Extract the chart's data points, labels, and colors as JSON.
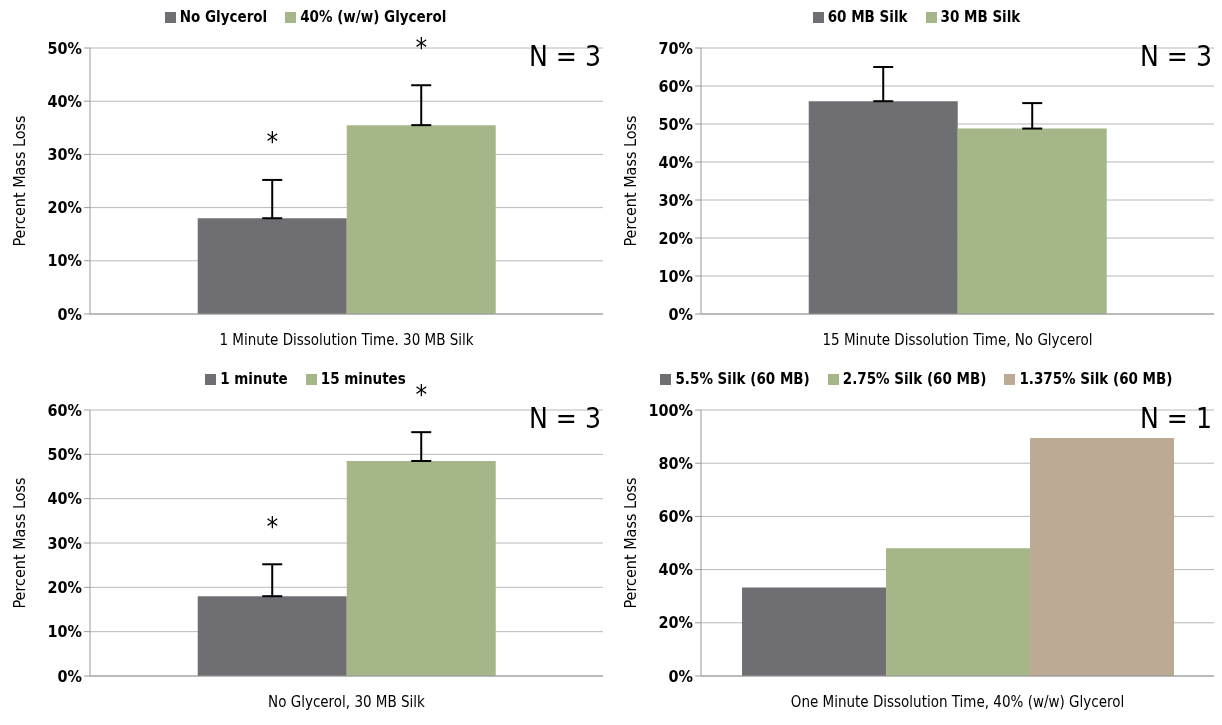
{
  "chart_data": [
    {
      "type": "bar",
      "categories": [
        "1 Minute Dissolution Time. 30 MB Silk"
      ],
      "ylabel": "Percent Mass Loss",
      "ylim": [
        0,
        50
      ],
      "yticks": [
        {
          "value": 0,
          "label": "0%"
        },
        {
          "value": 10,
          "label": "10%"
        },
        {
          "value": 20,
          "label": "20%"
        },
        {
          "value": 30,
          "label": "30%"
        },
        {
          "value": 40,
          "label": "40%"
        },
        {
          "value": 50,
          "label": "50%"
        }
      ],
      "grid": "y",
      "legend": "top",
      "series": [
        {
          "name": "No Glycerol",
          "color": "#6f6e73",
          "values": [
            18
          ],
          "errors": [
            [
              18,
              25.2
            ]
          ]
        },
        {
          "name": "40% (w/w) Glycerol",
          "color": "#a5b688",
          "values": [
            35.5
          ],
          "errors": [
            [
              35.5,
              43
            ]
          ]
        }
      ],
      "annotations": [
        "*",
        "*",
        "N = 3"
      ]
    },
    {
      "type": "bar",
      "categories": [
        "15 Minute Dissolution Time, No Glycerol"
      ],
      "ylabel": "Percent Mass Loss",
      "ylim": [
        0,
        70
      ],
      "yticks": [
        {
          "value": 0,
          "label": "0%"
        },
        {
          "value": 10,
          "label": "10%"
        },
        {
          "value": 20,
          "label": "20%"
        },
        {
          "value": 30,
          "label": "30%"
        },
        {
          "value": 40,
          "label": "40%"
        },
        {
          "value": 50,
          "label": "50%"
        },
        {
          "value": 60,
          "label": "60%"
        },
        {
          "value": 70,
          "label": "70%"
        }
      ],
      "grid": "y",
      "legend": "top",
      "series": [
        {
          "name": "60 MB Silk",
          "color": "#6f6e73",
          "values": [
            56
          ],
          "errors": [
            [
              56,
              65
            ]
          ]
        },
        {
          "name": "30 MB Silk",
          "color": "#a5b688",
          "values": [
            48.8
          ],
          "errors": [
            [
              48.8,
              55.5
            ]
          ]
        }
      ],
      "annotations": [
        "N = 3"
      ]
    },
    {
      "type": "bar",
      "categories": [
        "No Glycerol, 30 MB Silk"
      ],
      "ylabel": "Percent Mass Loss",
      "ylim": [
        0,
        60
      ],
      "yticks": [
        {
          "value": 0,
          "label": "0%"
        },
        {
          "value": 10,
          "label": "10%"
        },
        {
          "value": 20,
          "label": "20%"
        },
        {
          "value": 30,
          "label": "30%"
        },
        {
          "value": 40,
          "label": "40%"
        },
        {
          "value": 50,
          "label": "50%"
        },
        {
          "value": 60,
          "label": "60%"
        }
      ],
      "grid": "y",
      "legend": "top",
      "series": [
        {
          "name": "1 minute",
          "color": "#6f6e73",
          "values": [
            18
          ],
          "errors": [
            [
              18,
              25.2
            ]
          ]
        },
        {
          "name": "15 minutes",
          "color": "#a5b688",
          "values": [
            48.5
          ],
          "errors": [
            [
              48.5,
              55
            ]
          ]
        }
      ],
      "annotations": [
        "*",
        "*",
        "N = 3"
      ]
    },
    {
      "type": "bar",
      "categories": [
        "One Minute Dissolution Time, 40% (w/w) Glycerol"
      ],
      "ylabel": "Percent Mass Loss",
      "ylim": [
        0,
        100
      ],
      "yticks": [
        {
          "value": 0,
          "label": "0%"
        },
        {
          "value": 20,
          "label": "20%"
        },
        {
          "value": 40,
          "label": "40%"
        },
        {
          "value": 60,
          "label": "60%"
        },
        {
          "value": 80,
          "label": "80%"
        },
        {
          "value": 100,
          "label": "100%"
        }
      ],
      "grid": "y",
      "legend": "top",
      "series": [
        {
          "name": "5.5% Silk (60 MB)",
          "color": "#6f6e73",
          "values": [
            33.3
          ]
        },
        {
          "name": "2.75% Silk (60 MB)",
          "color": "#a5b688",
          "values": [
            48
          ]
        },
        {
          "name": "1.375% Silk (60 MB)",
          "color": "#bcaa94",
          "values": [
            89.5
          ]
        }
      ],
      "annotations": [
        "N = 1"
      ]
    }
  ]
}
